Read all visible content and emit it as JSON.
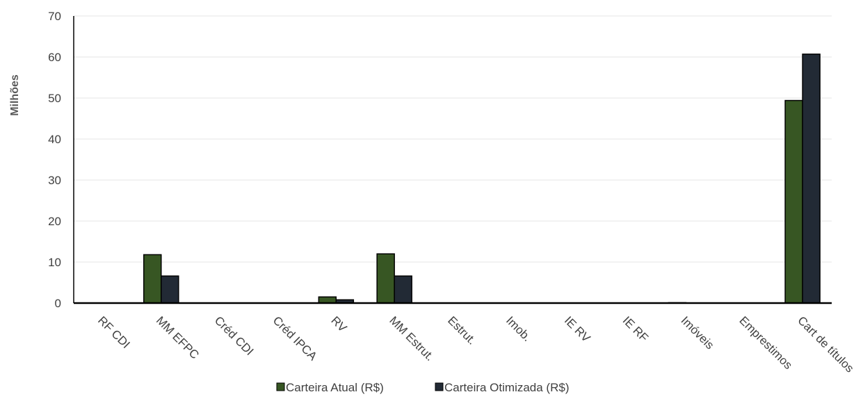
{
  "chart_data": {
    "type": "bar",
    "ylabel": "Milhões",
    "xlabel": "",
    "ylim": [
      0,
      70
    ],
    "yticks": [
      0,
      10,
      20,
      30,
      40,
      50,
      60,
      70
    ],
    "grid": true,
    "legend_position": "bottom",
    "categories": [
      "RF CDI",
      "MM EFPC",
      "Créd CDI",
      "Créd IPCA",
      "RV",
      "MM Estrut.",
      "Estrut.",
      "Imob.",
      "IE RV",
      "IE RF",
      "Imóveis",
      "Emprestimos",
      "Cart de títulos"
    ],
    "series": [
      {
        "name": "Carteira Atual (R$)",
        "color": "#375623",
        "values": [
          0,
          11.8,
          0,
          0,
          1.5,
          12.0,
          0,
          0,
          0,
          0,
          0.1,
          0,
          49.4
        ]
      },
      {
        "name": "Carteira Otimizada (R$)",
        "color": "#222a35",
        "values": [
          0,
          6.6,
          0,
          0,
          0.8,
          6.6,
          0,
          0,
          0,
          0,
          0,
          0,
          60.7
        ]
      }
    ]
  }
}
